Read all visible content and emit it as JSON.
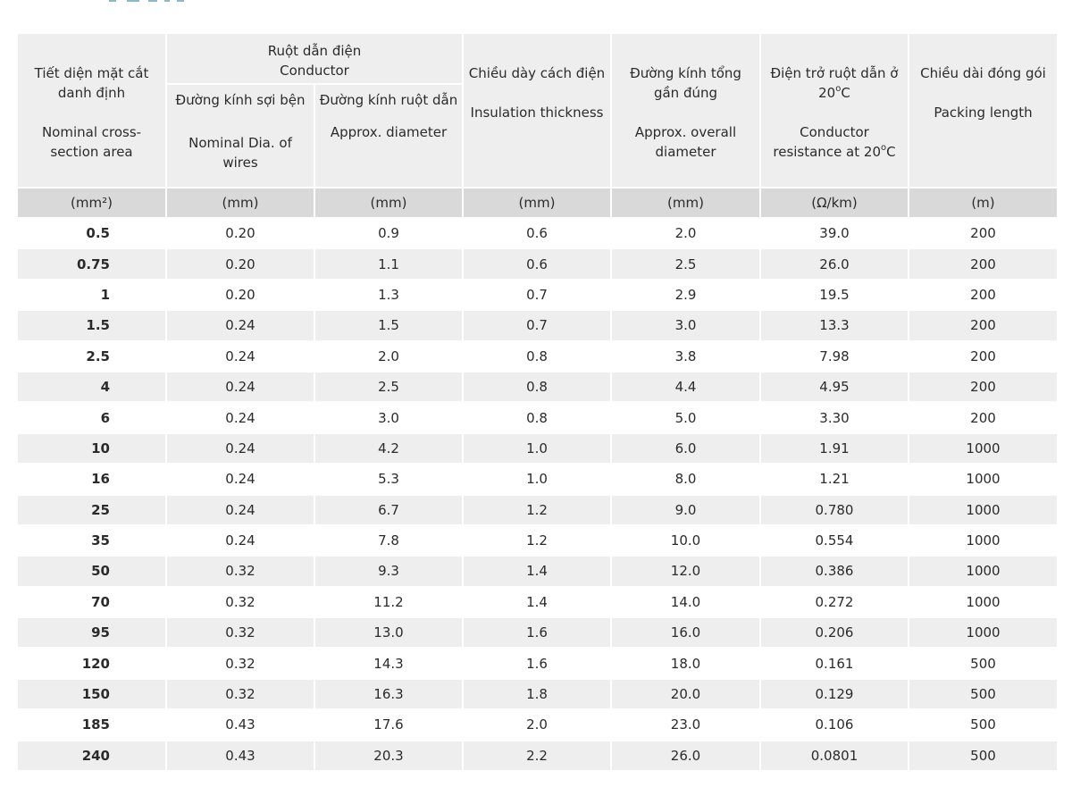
{
  "header": {
    "col_size": {
      "vi": "Tiết diện mặt cắt danh định",
      "en": "Nominal cross-section area",
      "unit": "(mm²)"
    },
    "group_conductor": {
      "vi": "Ruột dẫn điện",
      "en": "Conductor"
    },
    "col_wire_dia": {
      "vi": "Đường kính sợi bện",
      "en": "Nominal Dia. of wires",
      "unit": "(mm)"
    },
    "col_cond_dia": {
      "vi": "Đường kính ruột dẫn",
      "en": "Approx. diameter",
      "unit": "(mm)"
    },
    "col_insulation": {
      "vi": "Chiều dày cách điện",
      "en": "Insulation thickness",
      "unit": "(mm)"
    },
    "col_overall": {
      "vi": "Đường kính tổng gần đúng",
      "en": "Approx. overall diameter",
      "unit": "(mm)"
    },
    "col_resistance": {
      "vi_pre": "Điện trở ruột dẫn ở 20",
      "vi_sup": "o",
      "vi_post": "C",
      "en_pre": "Conductor resistance at 20",
      "en_sup": "o",
      "en_post": "C",
      "unit": "(Ω/km)"
    },
    "col_packing": {
      "vi": "Chiều dài đóng gói",
      "en": "Packing length",
      "unit": "(m)"
    }
  },
  "rows": [
    [
      "0.5",
      "0.20",
      "0.9",
      "0.6",
      "2.0",
      "39.0",
      "200"
    ],
    [
      "0.75",
      "0.20",
      "1.1",
      "0.6",
      "2.5",
      "26.0",
      "200"
    ],
    [
      "1",
      "0.20",
      "1.3",
      "0.7",
      "2.9",
      "19.5",
      "200"
    ],
    [
      "1.5",
      "0.24",
      "1.5",
      "0.7",
      "3.0",
      "13.3",
      "200"
    ],
    [
      "2.5",
      "0.24",
      "2.0",
      "0.8",
      "3.8",
      "7.98",
      "200"
    ],
    [
      "4",
      "0.24",
      "2.5",
      "0.8",
      "4.4",
      "4.95",
      "200"
    ],
    [
      "6",
      "0.24",
      "3.0",
      "0.8",
      "5.0",
      "3.30",
      "200"
    ],
    [
      "10",
      "0.24",
      "4.2",
      "1.0",
      "6.0",
      "1.91",
      "1000"
    ],
    [
      "16",
      "0.24",
      "5.3",
      "1.0",
      "8.0",
      "1.21",
      "1000"
    ],
    [
      "25",
      "0.24",
      "6.7",
      "1.2",
      "9.0",
      "0.780",
      "1000"
    ],
    [
      "35",
      "0.24",
      "7.8",
      "1.2",
      "10.0",
      "0.554",
      "1000"
    ],
    [
      "50",
      "0.32",
      "9.3",
      "1.4",
      "12.0",
      "0.386",
      "1000"
    ],
    [
      "70",
      "0.32",
      "11.2",
      "1.4",
      "14.0",
      "0.272",
      "1000"
    ],
    [
      "95",
      "0.32",
      "13.0",
      "1.6",
      "16.0",
      "0.206",
      "1000"
    ],
    [
      "120",
      "0.32",
      "14.3",
      "1.6",
      "18.0",
      "0.161",
      "500"
    ],
    [
      "150",
      "0.32",
      "16.3",
      "1.8",
      "20.0",
      "0.129",
      "500"
    ],
    [
      "185",
      "0.43",
      "17.6",
      "2.0",
      "23.0",
      "0.106",
      "500"
    ],
    [
      "240",
      "0.43",
      "20.3",
      "2.2",
      "26.0",
      "0.0801",
      "500"
    ]
  ]
}
